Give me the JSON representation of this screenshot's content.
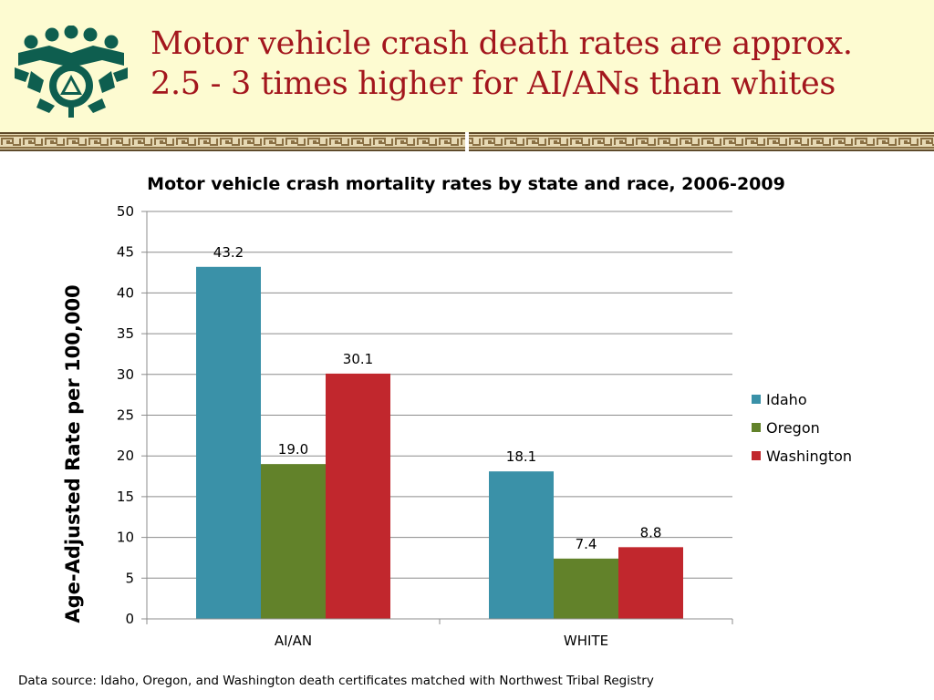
{
  "slide": {
    "title_line1": "Motor vehicle crash death rates are approx.",
    "title_line2": "2.5 - 3 times higher for AI/ANs than whites",
    "source_note": "Data source: Idaho, Oregon, and Washington death certificates matched with Northwest Tribal Registry",
    "logo_icon": "tribal-emblem-icon",
    "colors": {
      "header_bg": "#fdfbd1",
      "title": "#a3161d",
      "logo": "#0e5e4f",
      "border_band": "#8a7044"
    }
  },
  "chart_data": {
    "type": "bar",
    "title": "Motor vehicle crash mortality rates by state and race, 2006-2009",
    "xlabel": "",
    "ylabel": "Age-Adjusted Rate per 100,000",
    "categories": [
      "AI/AN",
      "WHITE"
    ],
    "series": [
      {
        "name": "Idaho",
        "values": [
          43.2,
          18.1
        ],
        "labels": [
          "43.2",
          "18.1"
        ],
        "color": "#3a91a8"
      },
      {
        "name": "Oregon",
        "values": [
          19.0,
          7.4
        ],
        "labels": [
          "19.0",
          "7.4"
        ],
        "color": "#62822a"
      },
      {
        "name": "Washington",
        "values": [
          30.1,
          8.8
        ],
        "labels": [
          "30.1",
          "8.8"
        ],
        "color": "#c1272d"
      }
    ],
    "ylim": [
      0,
      50
    ],
    "yticks": [
      0,
      5,
      10,
      15,
      20,
      25,
      30,
      35,
      40,
      45,
      50
    ],
    "grid": true,
    "legend_position": "right"
  }
}
